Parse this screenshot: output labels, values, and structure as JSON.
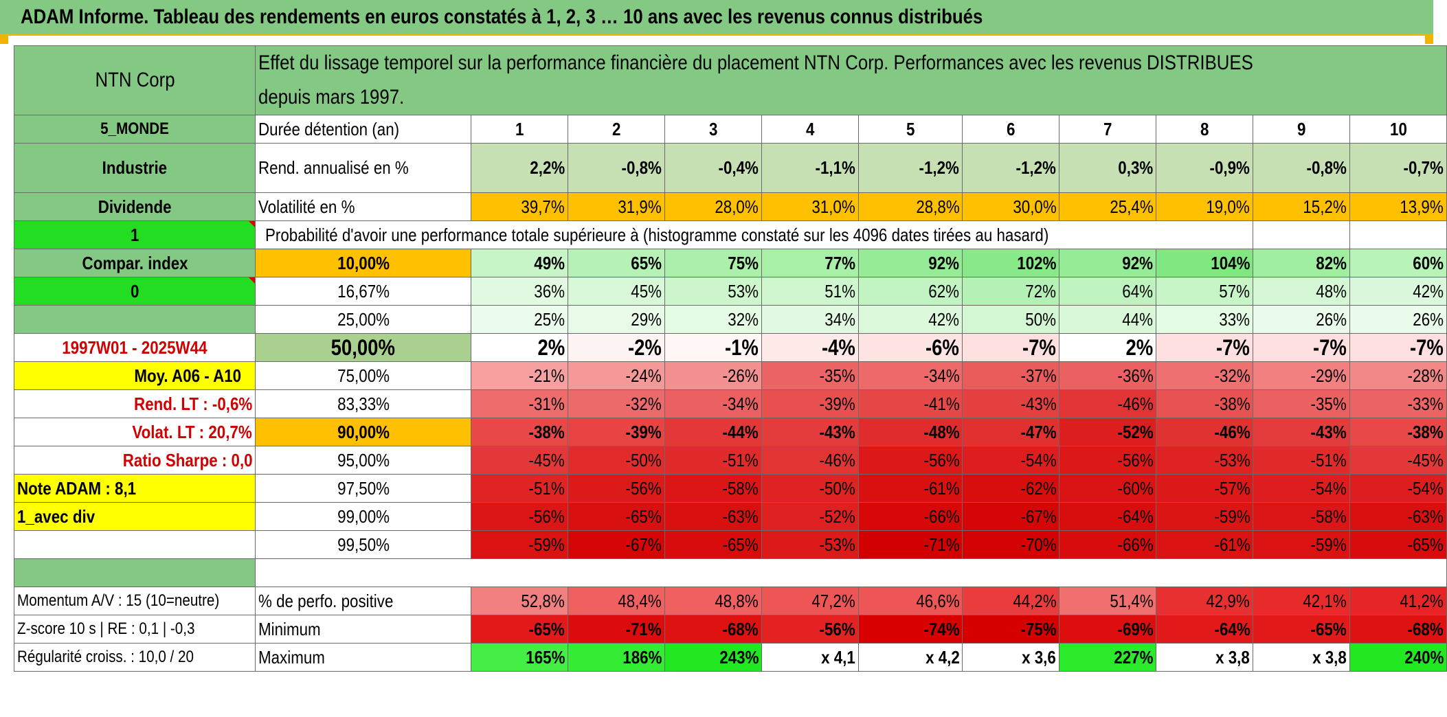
{
  "title": "ADAM Informe. Tableau des rendements en euros constatés à 1, 2, 3 … 10 ans avec les revenus connus distribués",
  "colors": {
    "title_bg": "#83c983",
    "accent": "#f0b400",
    "volatility": "#ffc000",
    "highlight_yellow": "#ffff00",
    "bright_green": "#22dd22"
  },
  "header": {
    "company": "NTN Corp",
    "description": "Effet du lissage temporel sur la performance financière du placement NTN Corp. Performances avec les revenus DISTRIBUES depuis mars 1997."
  },
  "left_panel": {
    "zone": "5_MONDE",
    "sector": "Industrie",
    "type": "Dividende",
    "selector_value": "1",
    "compar_label": "Compar. index",
    "compar_value": "0",
    "blank_label": "",
    "period": "1997W01 - 2025W44",
    "avg_label": "Moy. A06 - A10",
    "rend_lt": "Rend. LT :    -0,6%",
    "volat_lt": "Volat. LT :    20,7%",
    "sharpe": "Ratio Sharpe :     0,0",
    "note_adam": "Note ADAM : 8,1",
    "mode": "1_avec div",
    "momentum": "Momentum A/V : 15 (10=neutre)",
    "zscore": "Z-score 10 s | RE : 0,1 | -0,3",
    "regularite": "Régularité croiss. : 10,0 / 20"
  },
  "labels": {
    "duration": "Durée détention (an)",
    "rendement": "Rend. annualisé en %",
    "volatilite": "Volatilité en %",
    "probability": "Probabilité d'avoir une performance totale supérieure à (histogramme constaté sur les 4096 dates tirées au hasard)",
    "positive": "% de perfo. positive",
    "minimum": "Minimum",
    "maximum": "Maximum"
  },
  "years": [
    "1",
    "2",
    "3",
    "4",
    "5",
    "6",
    "7",
    "8",
    "9",
    "10"
  ],
  "rendements": [
    "2,2%",
    "-0,8%",
    "-0,4%",
    "-1,1%",
    "-1,2%",
    "-1,2%",
    "0,3%",
    "-0,9%",
    "-0,8%",
    "-0,7%"
  ],
  "volatilites": [
    "39,7%",
    "31,9%",
    "28,0%",
    "31,0%",
    "28,8%",
    "30,0%",
    "25,4%",
    "19,0%",
    "15,2%",
    "13,9%"
  ],
  "probabilities": [
    {
      "level": "10,00%",
      "values": [
        "49%",
        "65%",
        "75%",
        "77%",
        "92%",
        "102%",
        "92%",
        "104%",
        "82%",
        "60%"
      ]
    },
    {
      "level": "16,67%",
      "values": [
        "36%",
        "45%",
        "53%",
        "51%",
        "62%",
        "72%",
        "64%",
        "57%",
        "48%",
        "42%"
      ]
    },
    {
      "level": "25,00%",
      "values": [
        "25%",
        "29%",
        "32%",
        "34%",
        "42%",
        "50%",
        "44%",
        "33%",
        "26%",
        "26%"
      ]
    },
    {
      "level": "50,00%",
      "values": [
        "2%",
        "-2%",
        "-1%",
        "-4%",
        "-6%",
        "-7%",
        "2%",
        "-7%",
        "-7%",
        "-7%"
      ]
    },
    {
      "level": "75,00%",
      "values": [
        "-21%",
        "-24%",
        "-26%",
        "-35%",
        "-34%",
        "-37%",
        "-36%",
        "-32%",
        "-29%",
        "-28%"
      ]
    },
    {
      "level": "83,33%",
      "values": [
        "-31%",
        "-32%",
        "-34%",
        "-39%",
        "-41%",
        "-43%",
        "-46%",
        "-38%",
        "-35%",
        "-33%"
      ]
    },
    {
      "level": "90,00%",
      "values": [
        "-38%",
        "-39%",
        "-44%",
        "-43%",
        "-48%",
        "-47%",
        "-52%",
        "-46%",
        "-43%",
        "-38%"
      ]
    },
    {
      "level": "95,00%",
      "values": [
        "-45%",
        "-50%",
        "-51%",
        "-46%",
        "-56%",
        "-54%",
        "-56%",
        "-53%",
        "-51%",
        "-45%"
      ]
    },
    {
      "level": "97,50%",
      "values": [
        "-51%",
        "-56%",
        "-58%",
        "-50%",
        "-61%",
        "-62%",
        "-60%",
        "-57%",
        "-54%",
        "-54%"
      ]
    },
    {
      "level": "99,00%",
      "values": [
        "-56%",
        "-65%",
        "-63%",
        "-52%",
        "-66%",
        "-67%",
        "-64%",
        "-59%",
        "-58%",
        "-63%"
      ]
    },
    {
      "level": "99,50%",
      "values": [
        "-59%",
        "-67%",
        "-65%",
        "-53%",
        "-71%",
        "-70%",
        "-66%",
        "-61%",
        "-59%",
        "-65%"
      ]
    }
  ],
  "positive_pct": [
    "52,8%",
    "48,4%",
    "48,8%",
    "47,2%",
    "46,6%",
    "44,2%",
    "51,4%",
    "42,9%",
    "42,1%",
    "41,2%"
  ],
  "minimum": [
    "-65%",
    "-71%",
    "-68%",
    "-56%",
    "-74%",
    "-75%",
    "-69%",
    "-64%",
    "-65%",
    "-68%"
  ],
  "maximum": [
    "165%",
    "186%",
    "243%",
    "x 4,1",
    "x 4,2",
    "x 3,6",
    "227%",
    "x 3,8",
    "x 3,8",
    "240%"
  ]
}
